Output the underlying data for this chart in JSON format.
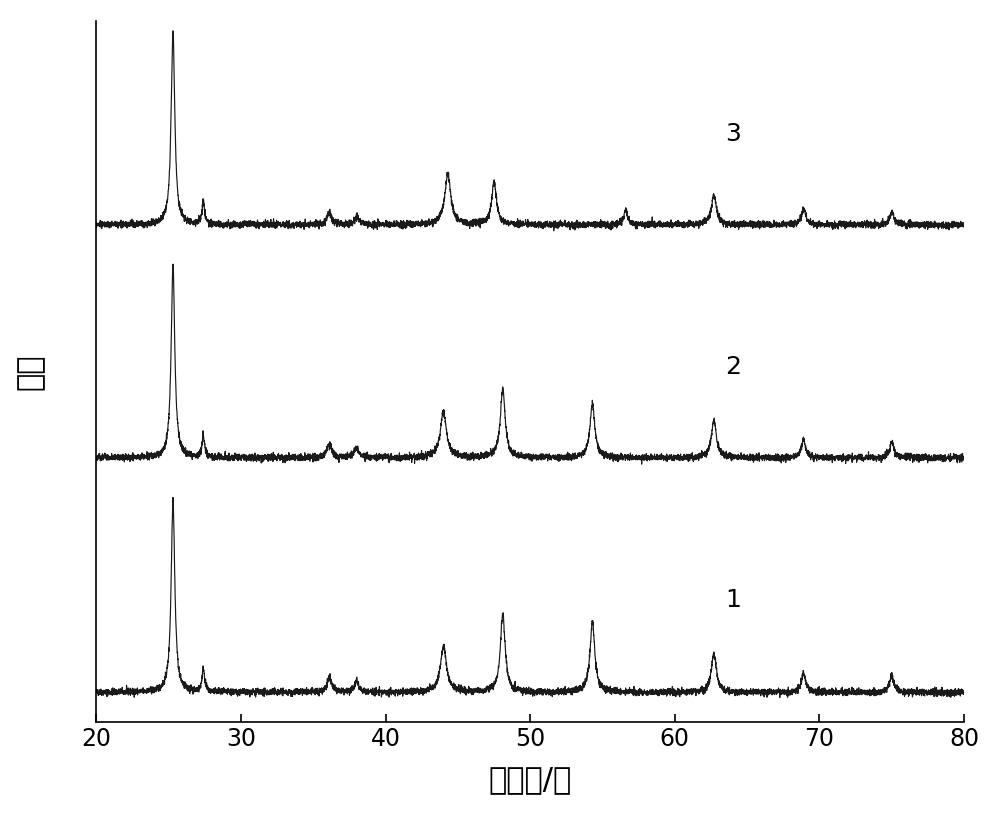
{
  "title": "",
  "xlabel": "衍射角/度",
  "ylabel": "强度",
  "xlim": [
    20,
    80
  ],
  "x_ticks": [
    20,
    30,
    40,
    50,
    60,
    70,
    80
  ],
  "background_color": "#ffffff",
  "line_color": "#1a1a1a",
  "label_fontsize": 22,
  "tick_fontsize": 17,
  "curve_labels": [
    "1",
    "2",
    "3"
  ],
  "offsets": [
    0.0,
    0.28,
    0.56
  ],
  "scale": 0.24,
  "peak_positions_1": [
    25.3,
    27.4,
    36.1,
    38.0,
    44.0,
    48.1,
    54.3,
    62.7,
    68.9,
    75.0
  ],
  "peak_heights_1": [
    2.5,
    0.3,
    0.18,
    0.15,
    0.6,
    1.0,
    0.9,
    0.5,
    0.25,
    0.22
  ],
  "peak_widths_1": [
    0.3,
    0.22,
    0.4,
    0.35,
    0.5,
    0.4,
    0.4,
    0.42,
    0.35,
    0.35
  ],
  "peak_positions_2": [
    25.3,
    27.4,
    36.1,
    38.0,
    44.0,
    48.1,
    54.3,
    62.7,
    68.9,
    75.0
  ],
  "peak_heights_2": [
    2.5,
    0.28,
    0.18,
    0.13,
    0.6,
    0.9,
    0.7,
    0.48,
    0.24,
    0.2
  ],
  "peak_widths_2": [
    0.3,
    0.22,
    0.4,
    0.35,
    0.5,
    0.4,
    0.4,
    0.42,
    0.35,
    0.35
  ],
  "peak_positions_3": [
    25.3,
    27.4,
    36.1,
    38.0,
    44.3,
    47.5,
    56.6,
    62.7,
    68.9,
    75.0
  ],
  "peak_heights_3": [
    2.5,
    0.28,
    0.15,
    0.1,
    0.65,
    0.55,
    0.2,
    0.38,
    0.2,
    0.16
  ],
  "peak_widths_3": [
    0.3,
    0.22,
    0.4,
    0.35,
    0.5,
    0.4,
    0.3,
    0.42,
    0.35,
    0.35
  ],
  "noise_amplitude": 0.022,
  "base_level": 0.03
}
